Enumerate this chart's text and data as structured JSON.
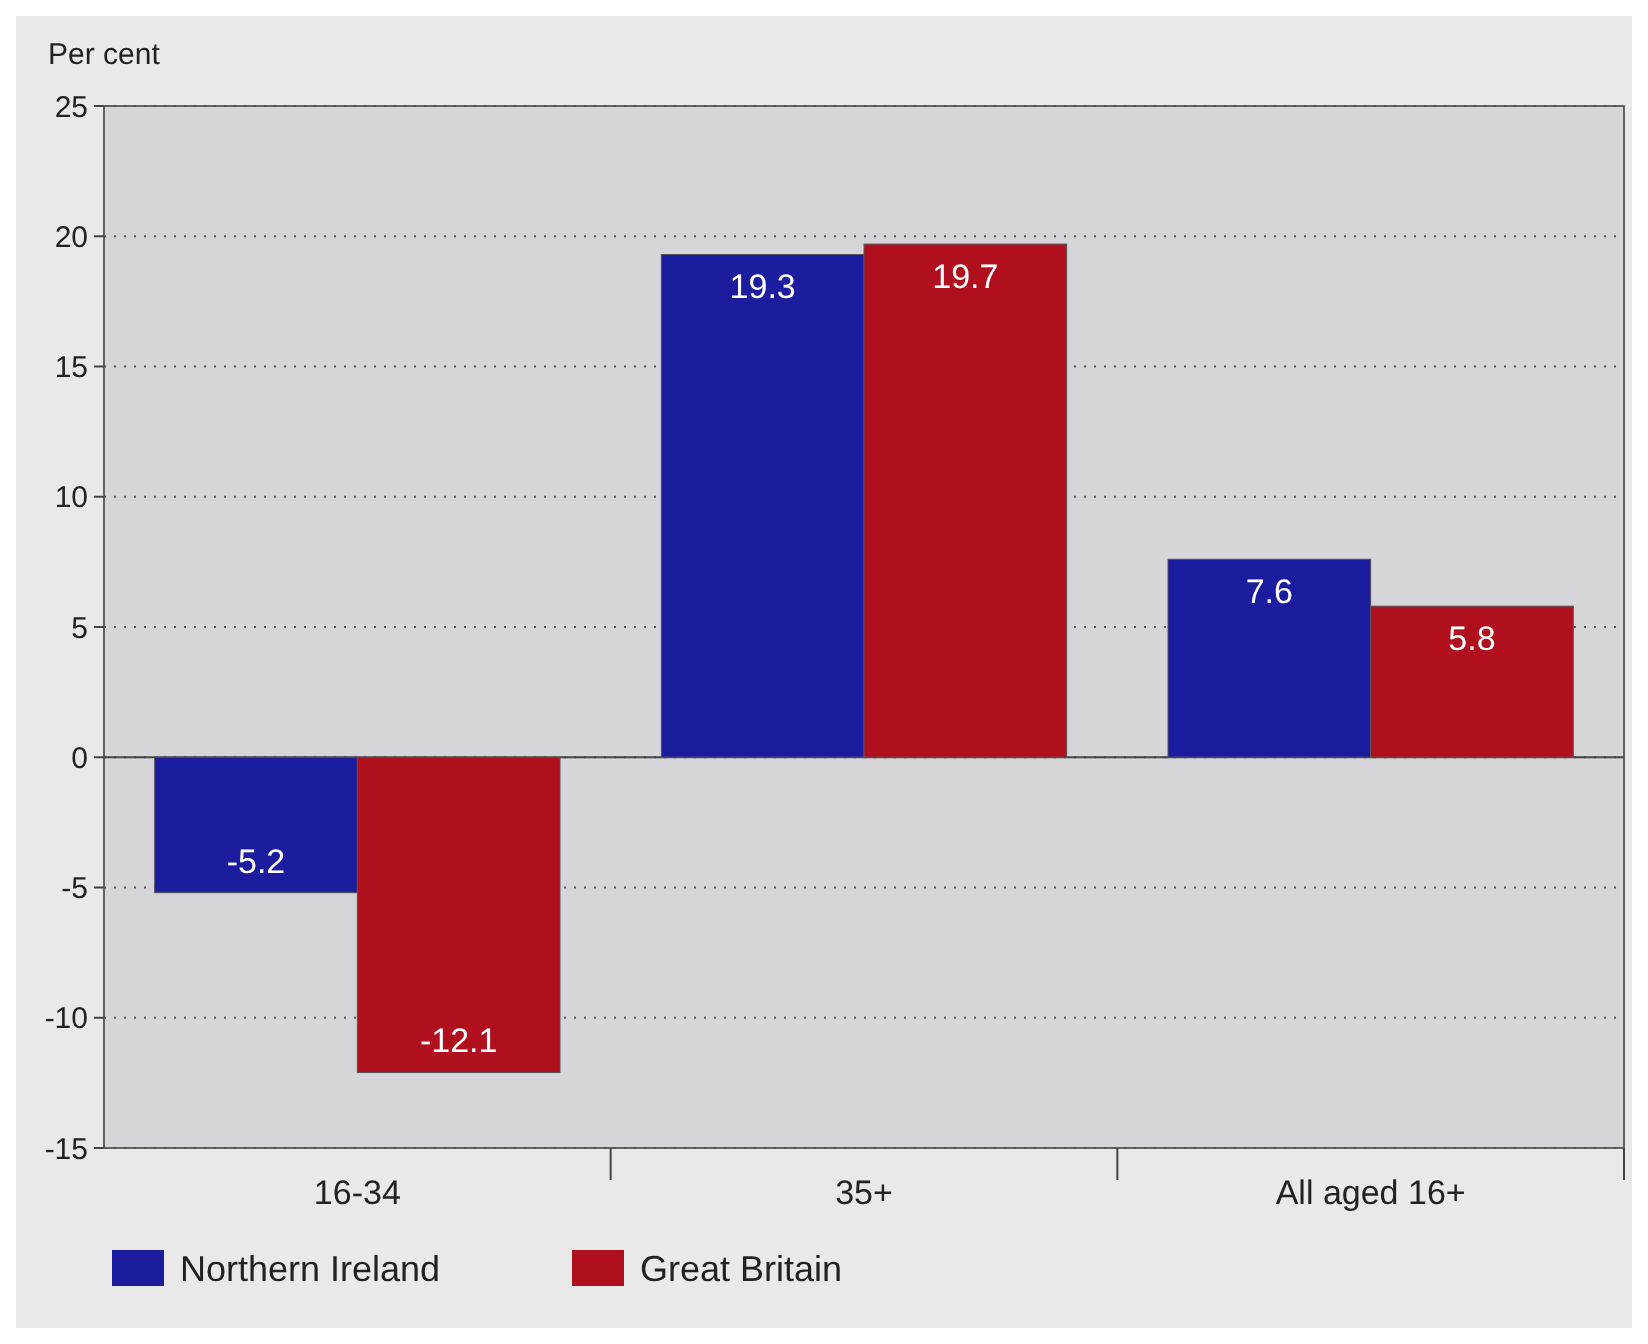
{
  "chart_data": {
    "type": "bar",
    "ylabel": "Per cent",
    "categories": [
      "16-34",
      "35+",
      "All aged 16+"
    ],
    "series": [
      {
        "name": "Northern Ireland",
        "color": "#1c1c9e",
        "values": [
          -5.2,
          19.3,
          7.6
        ]
      },
      {
        "name": "Great Britain",
        "color": "#b0101e",
        "values": [
          -12.1,
          19.7,
          5.8
        ]
      }
    ],
    "ylim": [
      -15,
      25
    ],
    "yticks": [
      -15,
      -10,
      -5,
      0,
      5,
      10,
      15,
      20,
      25
    ],
    "grid": "y",
    "data_labels": true,
    "legend": "bottom left"
  }
}
